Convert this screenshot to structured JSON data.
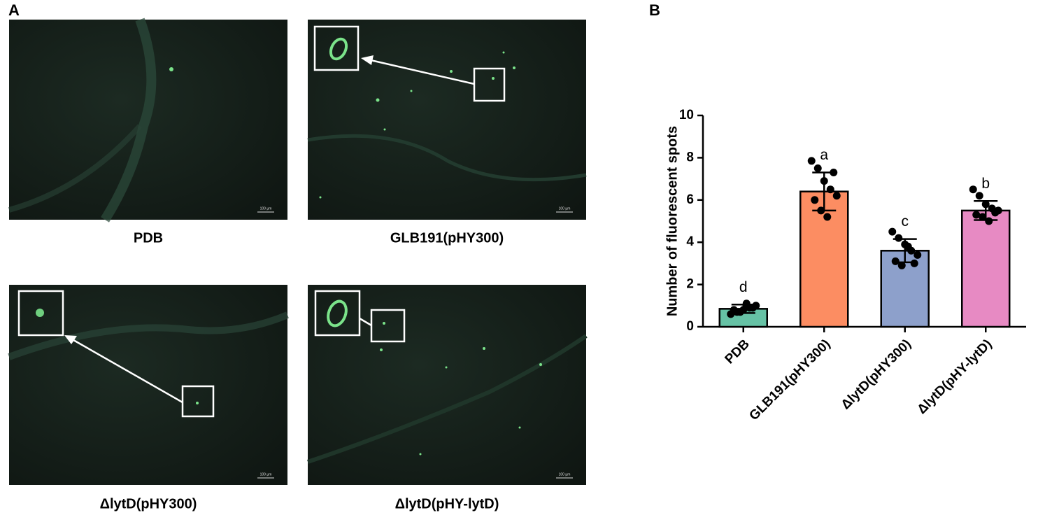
{
  "figure": {
    "panel_labels": [
      "A",
      "B"
    ],
    "captions": [
      "PDB",
      "GLB191(pHY300)",
      "ΔlytD(pHY300)",
      "ΔlytD(pHY-lytD)"
    ],
    "scale_bar": "100 µm"
  },
  "chart_data": {
    "type": "bar",
    "ylabel": "Number of fluorescent spots",
    "categories": [
      "PDB",
      "GLB191(pHY300)",
      "ΔlytD(pHY300)",
      "ΔlytD(pHY-lytD)"
    ],
    "values": [
      0.85,
      6.4,
      3.6,
      5.5
    ],
    "errors": [
      0.2,
      0.9,
      0.55,
      0.45
    ],
    "colors": [
      "#66c2a5",
      "#fc8d62",
      "#8da0cb",
      "#e78ac3"
    ],
    "letters": [
      "d",
      "a",
      "c",
      "b"
    ],
    "points": [
      [
        0.6,
        0.7,
        0.8,
        0.9,
        1.0,
        0.8,
        0.7,
        1.1,
        0.9
      ],
      [
        7.85,
        7.5,
        6.9,
        6.5,
        6.2,
        6.0,
        5.5,
        5.2,
        7.3
      ],
      [
        4.5,
        4.2,
        3.9,
        3.6,
        3.4,
        3.1,
        2.9,
        3.8,
        3.0
      ],
      [
        6.5,
        6.2,
        5.8,
        5.6,
        5.5,
        5.3,
        5.2,
        5.0,
        5.4
      ]
    ],
    "ylim": [
      0,
      10
    ],
    "yticks": [
      0,
      2,
      4,
      6,
      8,
      10
    ]
  }
}
